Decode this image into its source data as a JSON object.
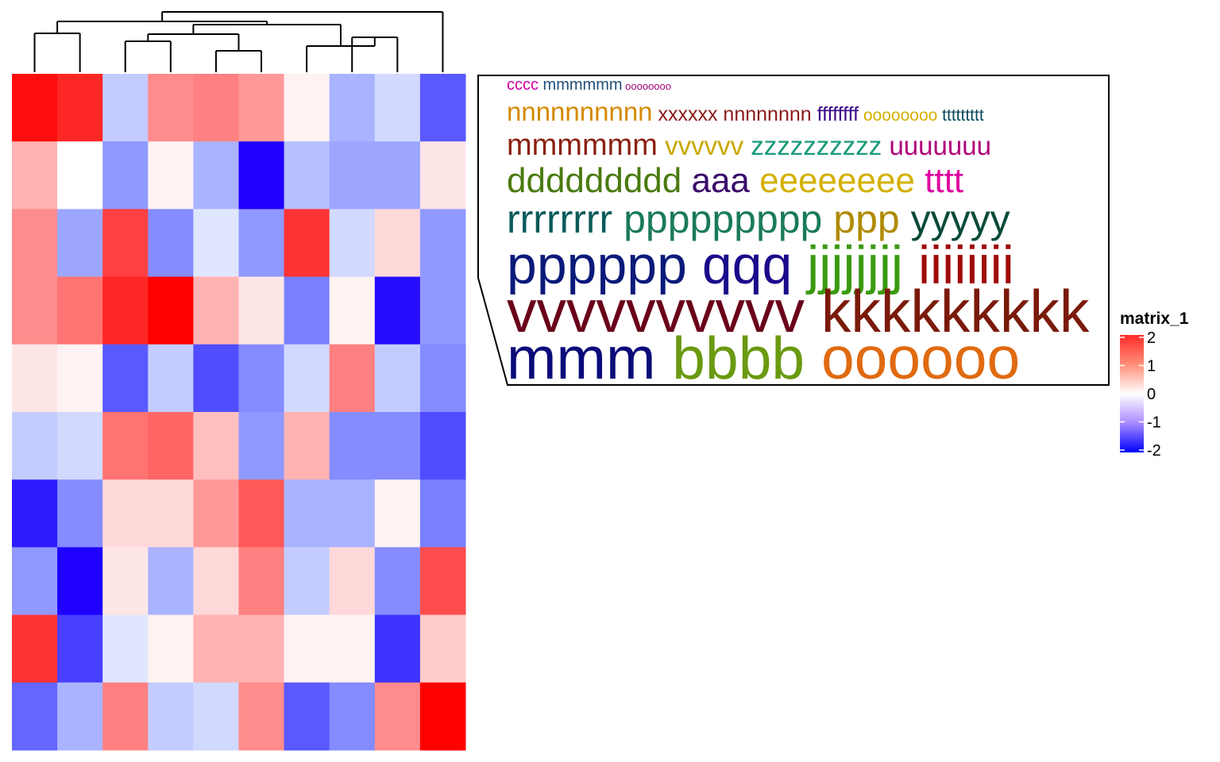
{
  "chart_data": {
    "type": "heatmap",
    "rows": 10,
    "cols": 10,
    "values": [
      [
        1.9,
        1.7,
        -0.4,
        0.9,
        1.0,
        0.8,
        0.1,
        -0.6,
        -0.3,
        -1.3
      ],
      [
        0.6,
        0.0,
        -0.8,
        0.1,
        -0.6,
        -2.0,
        -0.5,
        -0.7,
        -0.7,
        0.2
      ],
      [
        0.9,
        -0.7,
        1.5,
        -0.9,
        -0.2,
        -0.8,
        1.6,
        -0.3,
        0.3,
        -0.8
      ],
      [
        0.9,
        1.1,
        1.7,
        2.2,
        0.6,
        0.2,
        -1.0,
        0.1,
        -1.9,
        -0.8
      ],
      [
        0.2,
        0.1,
        -1.3,
        -0.4,
        -1.4,
        -0.9,
        -0.3,
        1.0,
        -0.4,
        -0.9
      ],
      [
        -0.4,
        -0.3,
        1.1,
        1.2,
        0.5,
        -0.8,
        0.6,
        -0.9,
        -0.9,
        -1.4
      ],
      [
        -1.8,
        -0.9,
        0.3,
        0.3,
        0.8,
        1.3,
        -0.6,
        -0.6,
        0.1,
        -1.0
      ],
      [
        -0.8,
        -2.4,
        0.2,
        -0.6,
        0.3,
        1.0,
        -0.4,
        0.3,
        -0.9,
        1.4
      ],
      [
        1.6,
        -1.5,
        -0.2,
        0.1,
        0.6,
        0.6,
        0.1,
        0.1,
        -1.6,
        0.4
      ],
      [
        -1.2,
        -0.6,
        1.0,
        -0.4,
        -0.3,
        0.9,
        -1.3,
        -0.9,
        0.9,
        2.3
      ]
    ],
    "color_scale": {
      "low": "#0000ff",
      "mid": "#ffffff",
      "high": "#ff0000",
      "domain": [
        -2,
        0,
        2
      ]
    },
    "legend": {
      "title": "matrix_1",
      "ticks": [
        2,
        1,
        0,
        -1,
        -2
      ],
      "placement": "right"
    },
    "column_dendrogram": true,
    "word_cloud": {
      "lines": [
        [
          {
            "text": "cccc",
            "size": 20,
            "color": "#cc00a0"
          },
          {
            "text": "mmmmmm",
            "size": 20,
            "color": "#1f4e79"
          },
          {
            "text": "oooooooo",
            "size": 13,
            "color": "#a0007a"
          }
        ],
        [
          {
            "text": "nnnnnnnnnn",
            "size": 33,
            "color": "#d48a00"
          },
          {
            "text": "xxxxxx",
            "size": 25,
            "color": "#8b1a1a"
          },
          {
            "text": "nnnnnnnn",
            "size": 25,
            "color": "#8b1a1a"
          },
          {
            "text": "ffffffff",
            "size": 25,
            "color": "#3a0a8a"
          },
          {
            "text": "oooooooo",
            "size": 21,
            "color": "#d4b000"
          },
          {
            "text": "ttttttttt",
            "size": 21,
            "color": "#0a4a5a"
          }
        ],
        [
          {
            "text": "mmmmmm",
            "size": 38,
            "color": "#8b2010"
          },
          {
            "text": "vvvvvv",
            "size": 33,
            "color": "#c8a800"
          },
          {
            "text": "zzzzzzzzzz",
            "size": 33,
            "color": "#1a9a7a"
          },
          {
            "text": "uuuuuuu",
            "size": 33,
            "color": "#b0007a"
          }
        ],
        [
          {
            "text": "ddddddddd",
            "size": 44,
            "color": "#4a7a10"
          },
          {
            "text": "aaa",
            "size": 44,
            "color": "#3a0a6a"
          },
          {
            "text": "eeeeeeee",
            "size": 44,
            "color": "#d4b000"
          },
          {
            "text": "tttt",
            "size": 44,
            "color": "#e000a0"
          }
        ],
        [
          {
            "text": "rrrrrrrr",
            "size": 50,
            "color": "#0a5a5a"
          },
          {
            "text": "ppppppppp",
            "size": 50,
            "color": "#1a7a5a"
          },
          {
            "text": "ppp",
            "size": 50,
            "color": "#b08a00"
          },
          {
            "text": "yyyyy",
            "size": 50,
            "color": "#0a4a3a"
          }
        ],
        [
          {
            "text": "pppppp",
            "size": 68,
            "color": "#0a1a7a"
          },
          {
            "text": "qqq",
            "size": 68,
            "color": "#1a0a8a"
          },
          {
            "text": "jjjjjjjj",
            "size": 68,
            "color": "#3a9a10"
          },
          {
            "text": "iiiiiiii",
            "size": 68,
            "color": "#a00a0a"
          }
        ],
        [
          {
            "text": "vvvvvvvvvv",
            "size": 75,
            "color": "#6a001a"
          },
          {
            "text": "kkkkkkkkk",
            "size": 75,
            "color": "#7a1a0a"
          }
        ],
        [
          {
            "text": "mmm",
            "size": 75,
            "color": "#0a0a7a"
          },
          {
            "text": "bbbb",
            "size": 75,
            "color": "#6a9a10"
          },
          {
            "text": "oooooo",
            "size": 75,
            "color": "#e06a10"
          }
        ]
      ]
    }
  }
}
